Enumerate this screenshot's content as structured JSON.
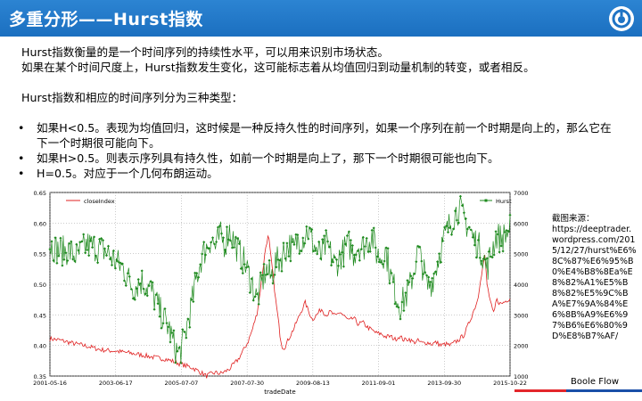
{
  "header": {
    "title": "多重分形——Hurst指数"
  },
  "body": {
    "intro": [
      "Hurst指数衡量的是一个时间序列的持续性水平，可以用来识别市场状态。",
      "如果在某个时间尺度上，Hurst指数发生变化，这可能标志着从均值回归到动量机制的转变，或者相反。"
    ],
    "types_heading": "Hurst指数和相应的时间序列分为三种类型：",
    "bullets": [
      "如果H<0.5。表现为均值回归，这时候是一种反持久性的时间序列，如果一个序列在前一个时期是向上的，那么它在下一个时期很可能向下。",
      "如果H>0.5。则表示序列具有持久性，如前一个时期是向上了，那下一个时期很可能也向下。",
      "H=0.5。对应于一个几何布朗运动。"
    ]
  },
  "source": {
    "label": "截图来源：",
    "url": "https://deeptrader.wordpress.com/2015/12/27/hurst%E6%8C%87%E6%95%B0%E4%B8%8Ea%E8%82%A1%E5%B8%82%E5%9C%BA%E7%9A%84%E6%8B%A9%E6%97%B6%E6%80%9D%E8%B7%AF/"
  },
  "brand": "Boole Flow",
  "colors": {
    "header": "#1f74c5",
    "hurst": "#1e8a1e",
    "close": "#e02020",
    "accent_red": "#e3262b",
    "accent_blue": "#1a4fa8"
  },
  "chart_data": {
    "type": "line",
    "xlabel": "tradeDate",
    "x_ticks": [
      "2001-05-16",
      "2003-06-17",
      "2005-07-07",
      "2007-07-30",
      "2009-08-13",
      "2011-09-01",
      "2013-09-30",
      "2015-10-22"
    ],
    "y_left_ticks": [
      "0.35",
      "0.40",
      "0.45",
      "0.50",
      "0.55",
      "0.60",
      "0.65"
    ],
    "y_right_ticks": [
      "1000",
      "2000",
      "3000",
      "4000",
      "5000",
      "6000",
      "7000"
    ],
    "ylim_left": [
      0.35,
      0.65
    ],
    "ylim_right": [
      1000,
      7000
    ],
    "legend_position": "top-left and top-right",
    "series": [
      {
        "name": "closeIndex",
        "axis": "right",
        "color": "#e02020",
        "points": [
          [
            0.0,
            2220
          ],
          [
            0.02,
            2180
          ],
          [
            0.05,
            2070
          ],
          [
            0.08,
            1980
          ],
          [
            0.11,
            1860
          ],
          [
            0.14,
            1820
          ],
          [
            0.17,
            1760
          ],
          [
            0.2,
            1690
          ],
          [
            0.23,
            1600
          ],
          [
            0.25,
            1560
          ],
          [
            0.27,
            1470
          ],
          [
            0.29,
            1360
          ],
          [
            0.31,
            1270
          ],
          [
            0.32,
            1180
          ],
          [
            0.33,
            1100
          ],
          [
            0.34,
            1000
          ],
          [
            0.35,
            1070
          ],
          [
            0.36,
            1110
          ],
          [
            0.37,
            1080
          ],
          [
            0.38,
            1140
          ],
          [
            0.39,
            1230
          ],
          [
            0.4,
            1390
          ],
          [
            0.41,
            1560
          ],
          [
            0.42,
            1830
          ],
          [
            0.43,
            2100
          ],
          [
            0.44,
            2520
          ],
          [
            0.45,
            3050
          ],
          [
            0.455,
            3550
          ],
          [
            0.46,
            4150
          ],
          [
            0.465,
            4750
          ],
          [
            0.47,
            5320
          ],
          [
            0.475,
            5600
          ],
          [
            0.48,
            4900
          ],
          [
            0.485,
            4300
          ],
          [
            0.49,
            3550
          ],
          [
            0.495,
            3000
          ],
          [
            0.5,
            2350
          ],
          [
            0.505,
            1950
          ],
          [
            0.51,
            1930
          ],
          [
            0.52,
            2250
          ],
          [
            0.53,
            2550
          ],
          [
            0.54,
            2900
          ],
          [
            0.55,
            3250
          ],
          [
            0.555,
            3400
          ],
          [
            0.56,
            3200
          ],
          [
            0.57,
            2850
          ],
          [
            0.58,
            3000
          ],
          [
            0.59,
            3200
          ],
          [
            0.6,
            3000
          ],
          [
            0.61,
            3100
          ],
          [
            0.62,
            2950
          ],
          [
            0.63,
            3100
          ],
          [
            0.64,
            2950
          ],
          [
            0.65,
            2800
          ],
          [
            0.66,
            2900
          ],
          [
            0.67,
            2700
          ],
          [
            0.68,
            2750
          ],
          [
            0.69,
            2600
          ],
          [
            0.7,
            2500
          ],
          [
            0.71,
            2400
          ],
          [
            0.72,
            2380
          ],
          [
            0.73,
            2280
          ],
          [
            0.74,
            2300
          ],
          [
            0.75,
            2200
          ],
          [
            0.76,
            2300
          ],
          [
            0.77,
            2170
          ],
          [
            0.78,
            2220
          ],
          [
            0.79,
            2100
          ],
          [
            0.8,
            2150
          ],
          [
            0.81,
            2070
          ],
          [
            0.82,
            2100
          ],
          [
            0.83,
            2050
          ],
          [
            0.84,
            2100
          ],
          [
            0.85,
            2000
          ],
          [
            0.86,
            2050
          ],
          [
            0.87,
            2000
          ],
          [
            0.88,
            2100
          ],
          [
            0.89,
            2200
          ],
          [
            0.9,
            2350
          ],
          [
            0.91,
            2700
          ],
          [
            0.92,
            3100
          ],
          [
            0.93,
            3500
          ],
          [
            0.935,
            4100
          ],
          [
            0.94,
            4500
          ],
          [
            0.945,
            4950
          ],
          [
            0.95,
            4000
          ],
          [
            0.955,
            3600
          ],
          [
            0.96,
            3250
          ],
          [
            0.965,
            3000
          ],
          [
            0.97,
            3500
          ],
          [
            0.98,
            3350
          ],
          [
            0.99,
            3450
          ],
          [
            1.0,
            3550
          ]
        ]
      },
      {
        "name": "Hurst",
        "axis": "left",
        "color": "#1e8a1e",
        "points": [
          [
            0.0,
            0.565
          ],
          [
            0.02,
            0.555
          ],
          [
            0.04,
            0.555
          ],
          [
            0.06,
            0.545
          ],
          [
            0.08,
            0.565
          ],
          [
            0.1,
            0.56
          ],
          [
            0.12,
            0.555
          ],
          [
            0.14,
            0.54
          ],
          [
            0.16,
            0.525
          ],
          [
            0.18,
            0.495
          ],
          [
            0.2,
            0.505
          ],
          [
            0.22,
            0.49
          ],
          [
            0.24,
            0.455
          ],
          [
            0.26,
            0.425
          ],
          [
            0.27,
            0.4
          ],
          [
            0.28,
            0.385
          ],
          [
            0.29,
            0.405
          ],
          [
            0.3,
            0.44
          ],
          [
            0.31,
            0.475
          ],
          [
            0.32,
            0.515
          ],
          [
            0.33,
            0.545
          ],
          [
            0.34,
            0.56
          ],
          [
            0.35,
            0.575
          ],
          [
            0.36,
            0.56
          ],
          [
            0.37,
            0.58
          ],
          [
            0.38,
            0.565
          ],
          [
            0.39,
            0.59
          ],
          [
            0.4,
            0.57
          ],
          [
            0.41,
            0.555
          ],
          [
            0.42,
            0.54
          ],
          [
            0.43,
            0.52
          ],
          [
            0.44,
            0.5
          ],
          [
            0.45,
            0.475
          ],
          [
            0.46,
            0.5
          ],
          [
            0.47,
            0.525
          ],
          [
            0.48,
            0.51
          ],
          [
            0.49,
            0.535
          ],
          [
            0.5,
            0.54
          ],
          [
            0.51,
            0.555
          ],
          [
            0.52,
            0.565
          ],
          [
            0.53,
            0.555
          ],
          [
            0.54,
            0.575
          ],
          [
            0.55,
            0.575
          ],
          [
            0.56,
            0.59
          ],
          [
            0.57,
            0.57
          ],
          [
            0.58,
            0.555
          ],
          [
            0.59,
            0.545
          ],
          [
            0.6,
            0.565
          ],
          [
            0.61,
            0.55
          ],
          [
            0.62,
            0.53
          ],
          [
            0.63,
            0.545
          ],
          [
            0.64,
            0.555
          ],
          [
            0.65,
            0.565
          ],
          [
            0.66,
            0.55
          ],
          [
            0.67,
            0.565
          ],
          [
            0.68,
            0.56
          ],
          [
            0.69,
            0.57
          ],
          [
            0.7,
            0.58
          ],
          [
            0.71,
            0.55
          ],
          [
            0.72,
            0.545
          ],
          [
            0.73,
            0.555
          ],
          [
            0.74,
            0.515
          ],
          [
            0.75,
            0.49
          ],
          [
            0.76,
            0.465
          ],
          [
            0.77,
            0.475
          ],
          [
            0.78,
            0.49
          ],
          [
            0.79,
            0.52
          ],
          [
            0.8,
            0.555
          ],
          [
            0.81,
            0.53
          ],
          [
            0.82,
            0.495
          ],
          [
            0.83,
            0.505
          ],
          [
            0.84,
            0.53
          ],
          [
            0.85,
            0.56
          ],
          [
            0.86,
            0.58
          ],
          [
            0.87,
            0.6
          ],
          [
            0.88,
            0.615
          ],
          [
            0.89,
            0.625
          ],
          [
            0.9,
            0.605
          ],
          [
            0.91,
            0.595
          ],
          [
            0.92,
            0.575
          ],
          [
            0.93,
            0.565
          ],
          [
            0.94,
            0.55
          ],
          [
            0.95,
            0.525
          ],
          [
            0.96,
            0.555
          ],
          [
            0.97,
            0.58
          ],
          [
            0.98,
            0.575
          ],
          [
            0.99,
            0.58
          ],
          [
            1.0,
            0.59
          ]
        ]
      }
    ]
  }
}
